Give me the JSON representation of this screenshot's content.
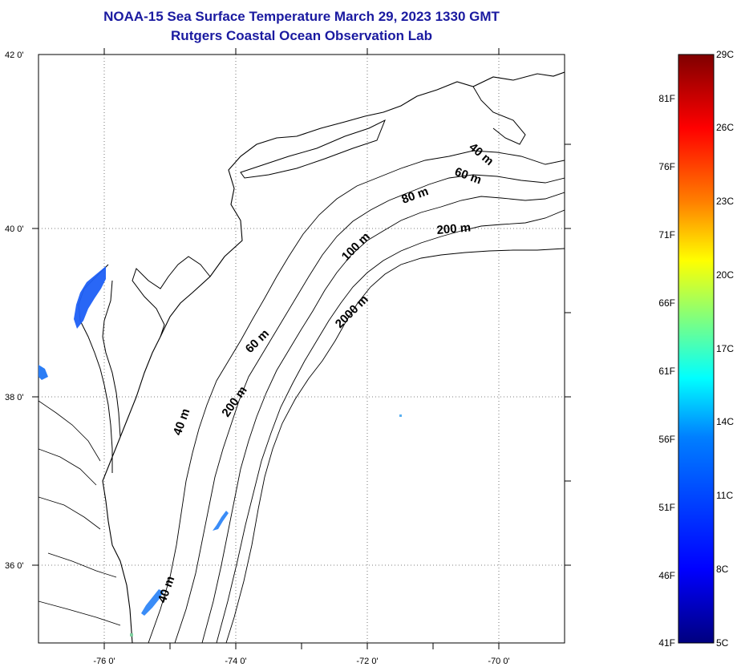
{
  "title": {
    "line1": "NOAA-15 Sea Surface Temperature March 29, 2023 1330 GMT",
    "line2": "Rutgers Coastal Ocean Observation Lab"
  },
  "map": {
    "lat_ticks": [
      "42 0'",
      "40 0'",
      "38 0'",
      "36 0'"
    ],
    "lon_ticks": [
      "-76 0'",
      "-74 0'",
      "-72 0'",
      "-70 0'"
    ],
    "contour_labels": [
      "40 m",
      "60 m",
      "80 m",
      "200 m",
      "100 m",
      "2000 m",
      "60 m",
      "200 m",
      "40 m",
      "40 m"
    ]
  },
  "colorbar": {
    "celsius": [
      "29C",
      "26C",
      "23C",
      "20C",
      "17C",
      "14C",
      "11C",
      "8C",
      "5C"
    ],
    "fahrenheit": [
      "81F",
      "76F",
      "71F",
      "66F",
      "61F",
      "56F",
      "51F",
      "46F",
      "41F"
    ],
    "colors": [
      "#00007f",
      "#0000ff",
      "#007fff",
      "#00ffff",
      "#7fff7f",
      "#ffff00",
      "#ff7f00",
      "#ff0000",
      "#7f0000"
    ]
  }
}
